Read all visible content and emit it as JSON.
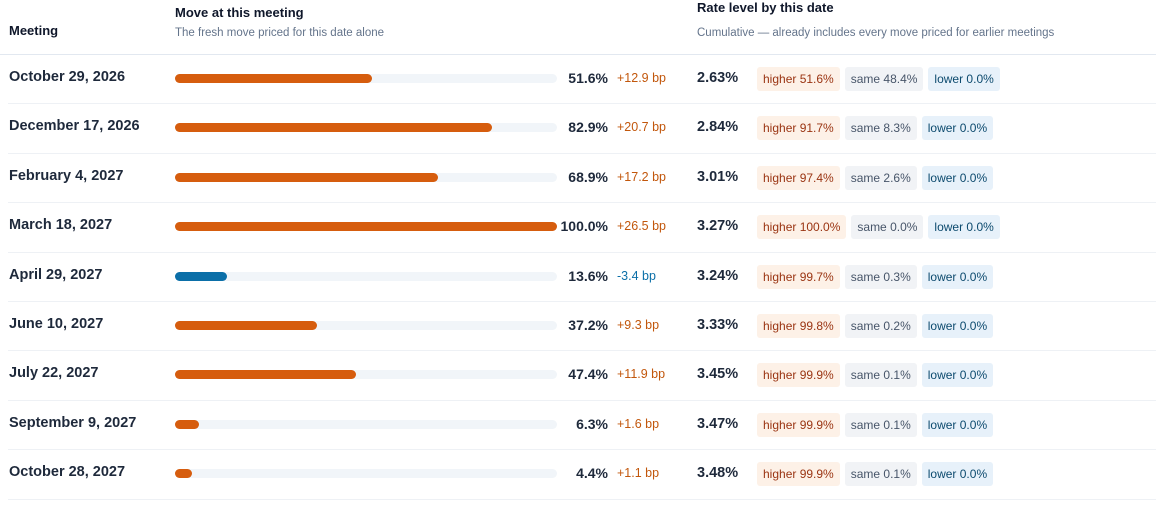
{
  "header": {
    "meeting": "Meeting",
    "move_title": "Move at this meeting",
    "move_sub": "The fresh move priced for this date alone",
    "rate_title": "Rate level by this date",
    "rate_sub": "Cumulative — already includes every move priced for earlier meetings"
  },
  "colors": {
    "hike": "#d65d0e",
    "cut": "#0b6fa8",
    "track": "#f1f5f9"
  },
  "rows": [
    {
      "date": "October 29, 2026",
      "prob": 51.6,
      "prob_label": "51.6%",
      "bp": "+12.9 bp",
      "direction": "up",
      "level": "2.63%",
      "higher": "higher 51.6%",
      "same": "same 48.4%",
      "lower": "lower 0.0%"
    },
    {
      "date": "December 17, 2026",
      "prob": 82.9,
      "prob_label": "82.9%",
      "bp": "+20.7 bp",
      "direction": "up",
      "level": "2.84%",
      "higher": "higher 91.7%",
      "same": "same 8.3%",
      "lower": "lower 0.0%"
    },
    {
      "date": "February 4, 2027",
      "prob": 68.9,
      "prob_label": "68.9%",
      "bp": "+17.2 bp",
      "direction": "up",
      "level": "3.01%",
      "higher": "higher 97.4%",
      "same": "same 2.6%",
      "lower": "lower 0.0%"
    },
    {
      "date": "March 18, 2027",
      "prob": 100.0,
      "prob_label": "100.0%",
      "bp": "+26.5 bp",
      "direction": "up",
      "level": "3.27%",
      "higher": "higher 100.0%",
      "same": "same 0.0%",
      "lower": "lower 0.0%"
    },
    {
      "date": "April 29, 2027",
      "prob": 13.6,
      "prob_label": "13.6%",
      "bp": "-3.4 bp",
      "direction": "down",
      "level": "3.24%",
      "higher": "higher 99.7%",
      "same": "same 0.3%",
      "lower": "lower 0.0%"
    },
    {
      "date": "June 10, 2027",
      "prob": 37.2,
      "prob_label": "37.2%",
      "bp": "+9.3 bp",
      "direction": "up",
      "level": "3.33%",
      "higher": "higher 99.8%",
      "same": "same 0.2%",
      "lower": "lower 0.0%"
    },
    {
      "date": "July 22, 2027",
      "prob": 47.4,
      "prob_label": "47.4%",
      "bp": "+11.9 bp",
      "direction": "up",
      "level": "3.45%",
      "higher": "higher 99.9%",
      "same": "same 0.1%",
      "lower": "lower 0.0%"
    },
    {
      "date": "September 9, 2027",
      "prob": 6.3,
      "prob_label": "6.3%",
      "bp": "+1.6 bp",
      "direction": "up",
      "level": "3.47%",
      "higher": "higher 99.9%",
      "same": "same 0.1%",
      "lower": "lower 0.0%"
    },
    {
      "date": "October 28, 2027",
      "prob": 4.4,
      "prob_label": "4.4%",
      "bp": "+1.1 bp",
      "direction": "up",
      "level": "3.48%",
      "higher": "higher 99.9%",
      "same": "same 0.1%",
      "lower": "lower 0.0%"
    }
  ]
}
